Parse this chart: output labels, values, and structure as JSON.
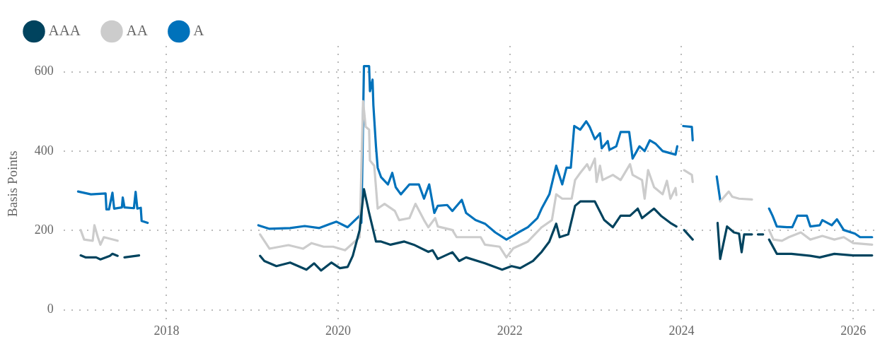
{
  "chart_data": {
    "type": "line",
    "ylabel": "Basis Points",
    "legend": "top left",
    "grid": true,
    "line_style": "solid",
    "xlim": [
      2016.8,
      2026.32
    ],
    "xticks": [
      2018,
      2020,
      2022,
      2024,
      2026
    ],
    "ylim": [
      -30,
      665
    ],
    "yticks": [
      0,
      200,
      400,
      600
    ],
    "series": [
      {
        "name": "AAA",
        "color": "#00435e",
        "x": [
          2017.0,
          2017.06,
          2017.18,
          2017.23,
          2017.34,
          2017.37,
          2017.43,
          2017.47,
          2017.51,
          2017.68,
          2018.5,
          2019.09,
          2019.14,
          2019.28,
          2019.44,
          2019.63,
          2019.72,
          2019.8,
          2019.92,
          2020.02,
          2020.11,
          2020.17,
          2020.25,
          2020.3,
          2020.36,
          2020.44,
          2020.5,
          2020.61,
          2020.77,
          2020.88,
          2021.05,
          2021.1,
          2021.16,
          2021.33,
          2021.41,
          2021.49,
          2021.71,
          2021.91,
          2022.02,
          2022.12,
          2022.27,
          2022.37,
          2022.46,
          2022.54,
          2022.58,
          2022.68,
          2022.76,
          2022.82,
          2022.99,
          2023.1,
          2023.2,
          2023.29,
          2023.4,
          2023.49,
          2023.54,
          2023.68,
          2023.76,
          2023.87,
          2023.94,
          2023.98,
          2024.03,
          2024.13,
          2024.3,
          2024.42,
          2024.45,
          2024.53,
          2024.61,
          2024.67,
          2024.7,
          2024.73,
          2024.82,
          2024.86,
          2024.89,
          2024.95,
          2024.98,
          2025.02,
          2025.11,
          2025.28,
          2025.5,
          2025.61,
          2025.78,
          2026.0,
          2026.22
        ],
        "values": [
          137,
          132,
          132,
          127,
          136,
          141,
          136,
          null,
          132,
          137,
          null,
          136,
          123,
          110,
          119,
          101,
          117,
          99,
          119,
          105,
          108,
          136,
          201,
          304,
          244,
          172,
          172,
          164,
          172,
          164,
          146,
          150,
          128,
          145,
          123,
          132,
          117,
          101,
          110,
          105,
          123,
          146,
          172,
          217,
          183,
          190,
          262,
          273,
          273,
          226,
          208,
          237,
          237,
          255,
          231,
          255,
          237,
          219,
          210,
          null,
          201,
          177,
          null,
          219,
          128,
          210,
          195,
          192,
          145,
          190,
          190,
          null,
          190,
          190,
          null,
          177,
          141,
          141,
          136,
          132,
          141,
          137,
          137
        ]
      },
      {
        "name": "AA",
        "color": "#cccccc",
        "x": [
          2017.0,
          2017.04,
          2017.14,
          2017.16,
          2017.2,
          2017.23,
          2017.27,
          2017.43,
          2018.5,
          2019.09,
          2019.2,
          2019.42,
          2019.59,
          2019.69,
          2019.83,
          2019.94,
          2020.08,
          2020.25,
          2020.29,
          2020.32,
          2020.36,
          2020.37,
          2020.42,
          2020.46,
          2020.54,
          2020.66,
          2020.71,
          2020.83,
          2020.9,
          2021.0,
          2021.05,
          2021.13,
          2021.16,
          2021.33,
          2021.38,
          2021.49,
          2021.66,
          2021.71,
          2021.88,
          2021.96,
          2022.04,
          2022.21,
          2022.37,
          2022.49,
          2022.54,
          2022.61,
          2022.72,
          2022.76,
          2022.82,
          2022.9,
          2022.93,
          2022.99,
          2023.01,
          2023.05,
          2023.08,
          2023.2,
          2023.29,
          2023.4,
          2023.43,
          2023.54,
          2023.57,
          2023.61,
          2023.68,
          2023.78,
          2023.83,
          2023.87,
          2023.93,
          2023.94,
          2023.98,
          2024.03,
          2024.12,
          2024.13,
          2024.3,
          2024.45,
          2024.55,
          2024.59,
          2024.67,
          2024.82,
          2024.92,
          2025.02,
          2025.07,
          2025.17,
          2025.25,
          2025.39,
          2025.5,
          2025.64,
          2025.78,
          2025.89,
          2026.0,
          2026.22
        ],
        "values": [
          201,
          177,
          174,
          213,
          183,
          164,
          183,
          174,
          null,
          190,
          154,
          163,
          154,
          168,
          159,
          159,
          150,
          183,
          526,
          461,
          454,
          376,
          363,
          255,
          267,
          249,
          226,
          231,
          267,
          226,
          208,
          231,
          210,
          201,
          183,
          183,
          183,
          164,
          159,
          132,
          155,
          172,
          208,
          226,
          291,
          280,
          280,
          327,
          345,
          367,
          352,
          381,
          322,
          363,
          327,
          340,
          327,
          367,
          340,
          327,
          280,
          352,
          309,
          291,
          325,
          280,
          307,
          289,
          null,
          352,
          340,
          322,
          null,
          273,
          298,
          285,
          280,
          278,
          null,
          201,
          177,
          174,
          183,
          195,
          177,
          186,
          177,
          183,
          168,
          164
        ]
      },
      {
        "name": "A",
        "color": "#0072bb",
        "x": [
          2016.97,
          2017.12,
          2017.29,
          2017.3,
          2017.33,
          2017.37,
          2017.39,
          2017.48,
          2017.49,
          2017.51,
          2017.62,
          2017.64,
          2017.66,
          2017.7,
          2017.71,
          2017.78,
          2018.5,
          2019.07,
          2019.2,
          2019.44,
          2019.61,
          2019.78,
          2019.9,
          2019.98,
          2020.11,
          2020.25,
          2020.27,
          2020.3,
          2020.36,
          2020.37,
          2020.4,
          2020.41,
          2020.44,
          2020.46,
          2020.5,
          2020.58,
          2020.63,
          2020.67,
          2020.73,
          2020.83,
          2020.94,
          2021.0,
          2021.06,
          2021.12,
          2021.16,
          2021.27,
          2021.33,
          2021.44,
          2021.49,
          2021.6,
          2021.71,
          2021.83,
          2021.96,
          2022.1,
          2022.21,
          2022.32,
          2022.37,
          2022.46,
          2022.54,
          2022.61,
          2022.66,
          2022.71,
          2022.75,
          2022.82,
          2022.89,
          2022.93,
          2022.99,
          2023.05,
          2023.07,
          2023.14,
          2023.16,
          2023.24,
          2023.29,
          2023.39,
          2023.43,
          2023.51,
          2023.57,
          2023.63,
          2023.7,
          2023.78,
          2023.93,
          2023.95,
          2023.98,
          2024.02,
          2024.12,
          2024.13,
          2024.3,
          2024.41,
          2024.45,
          2024.7,
          2025.02,
          2025.06,
          2025.11,
          2025.23,
          2025.29,
          2025.35,
          2025.46,
          2025.5,
          2025.61,
          2025.64,
          2025.75,
          2025.81,
          2025.89,
          2026.02,
          2026.08,
          2026.22
        ],
        "values": [
          298,
          291,
          293,
          253,
          253,
          295,
          255,
          258,
          283,
          258,
          256,
          297,
          255,
          257,
          224,
          219,
          null,
          213,
          204,
          206,
          211,
          206,
          216,
          222,
          208,
          237,
          219,
          614,
          614,
          551,
          580,
          515,
          412,
          358,
          334,
          316,
          345,
          309,
          291,
          316,
          316,
          280,
          316,
          244,
          262,
          264,
          249,
          277,
          244,
          226,
          217,
          195,
          177,
          195,
          208,
          231,
          255,
          291,
          363,
          316,
          358,
          358,
          463,
          454,
          475,
          461,
          430,
          445,
          407,
          425,
          403,
          412,
          448,
          448,
          381,
          412,
          400,
          427,
          418,
          400,
          391,
          412,
          null,
          463,
          461,
          427,
          null,
          336,
          277,
          null,
          255,
          237,
          210,
          208,
          208,
          237,
          237,
          210,
          213,
          226,
          213,
          228,
          201,
          192,
          183,
          183
        ]
      }
    ]
  }
}
